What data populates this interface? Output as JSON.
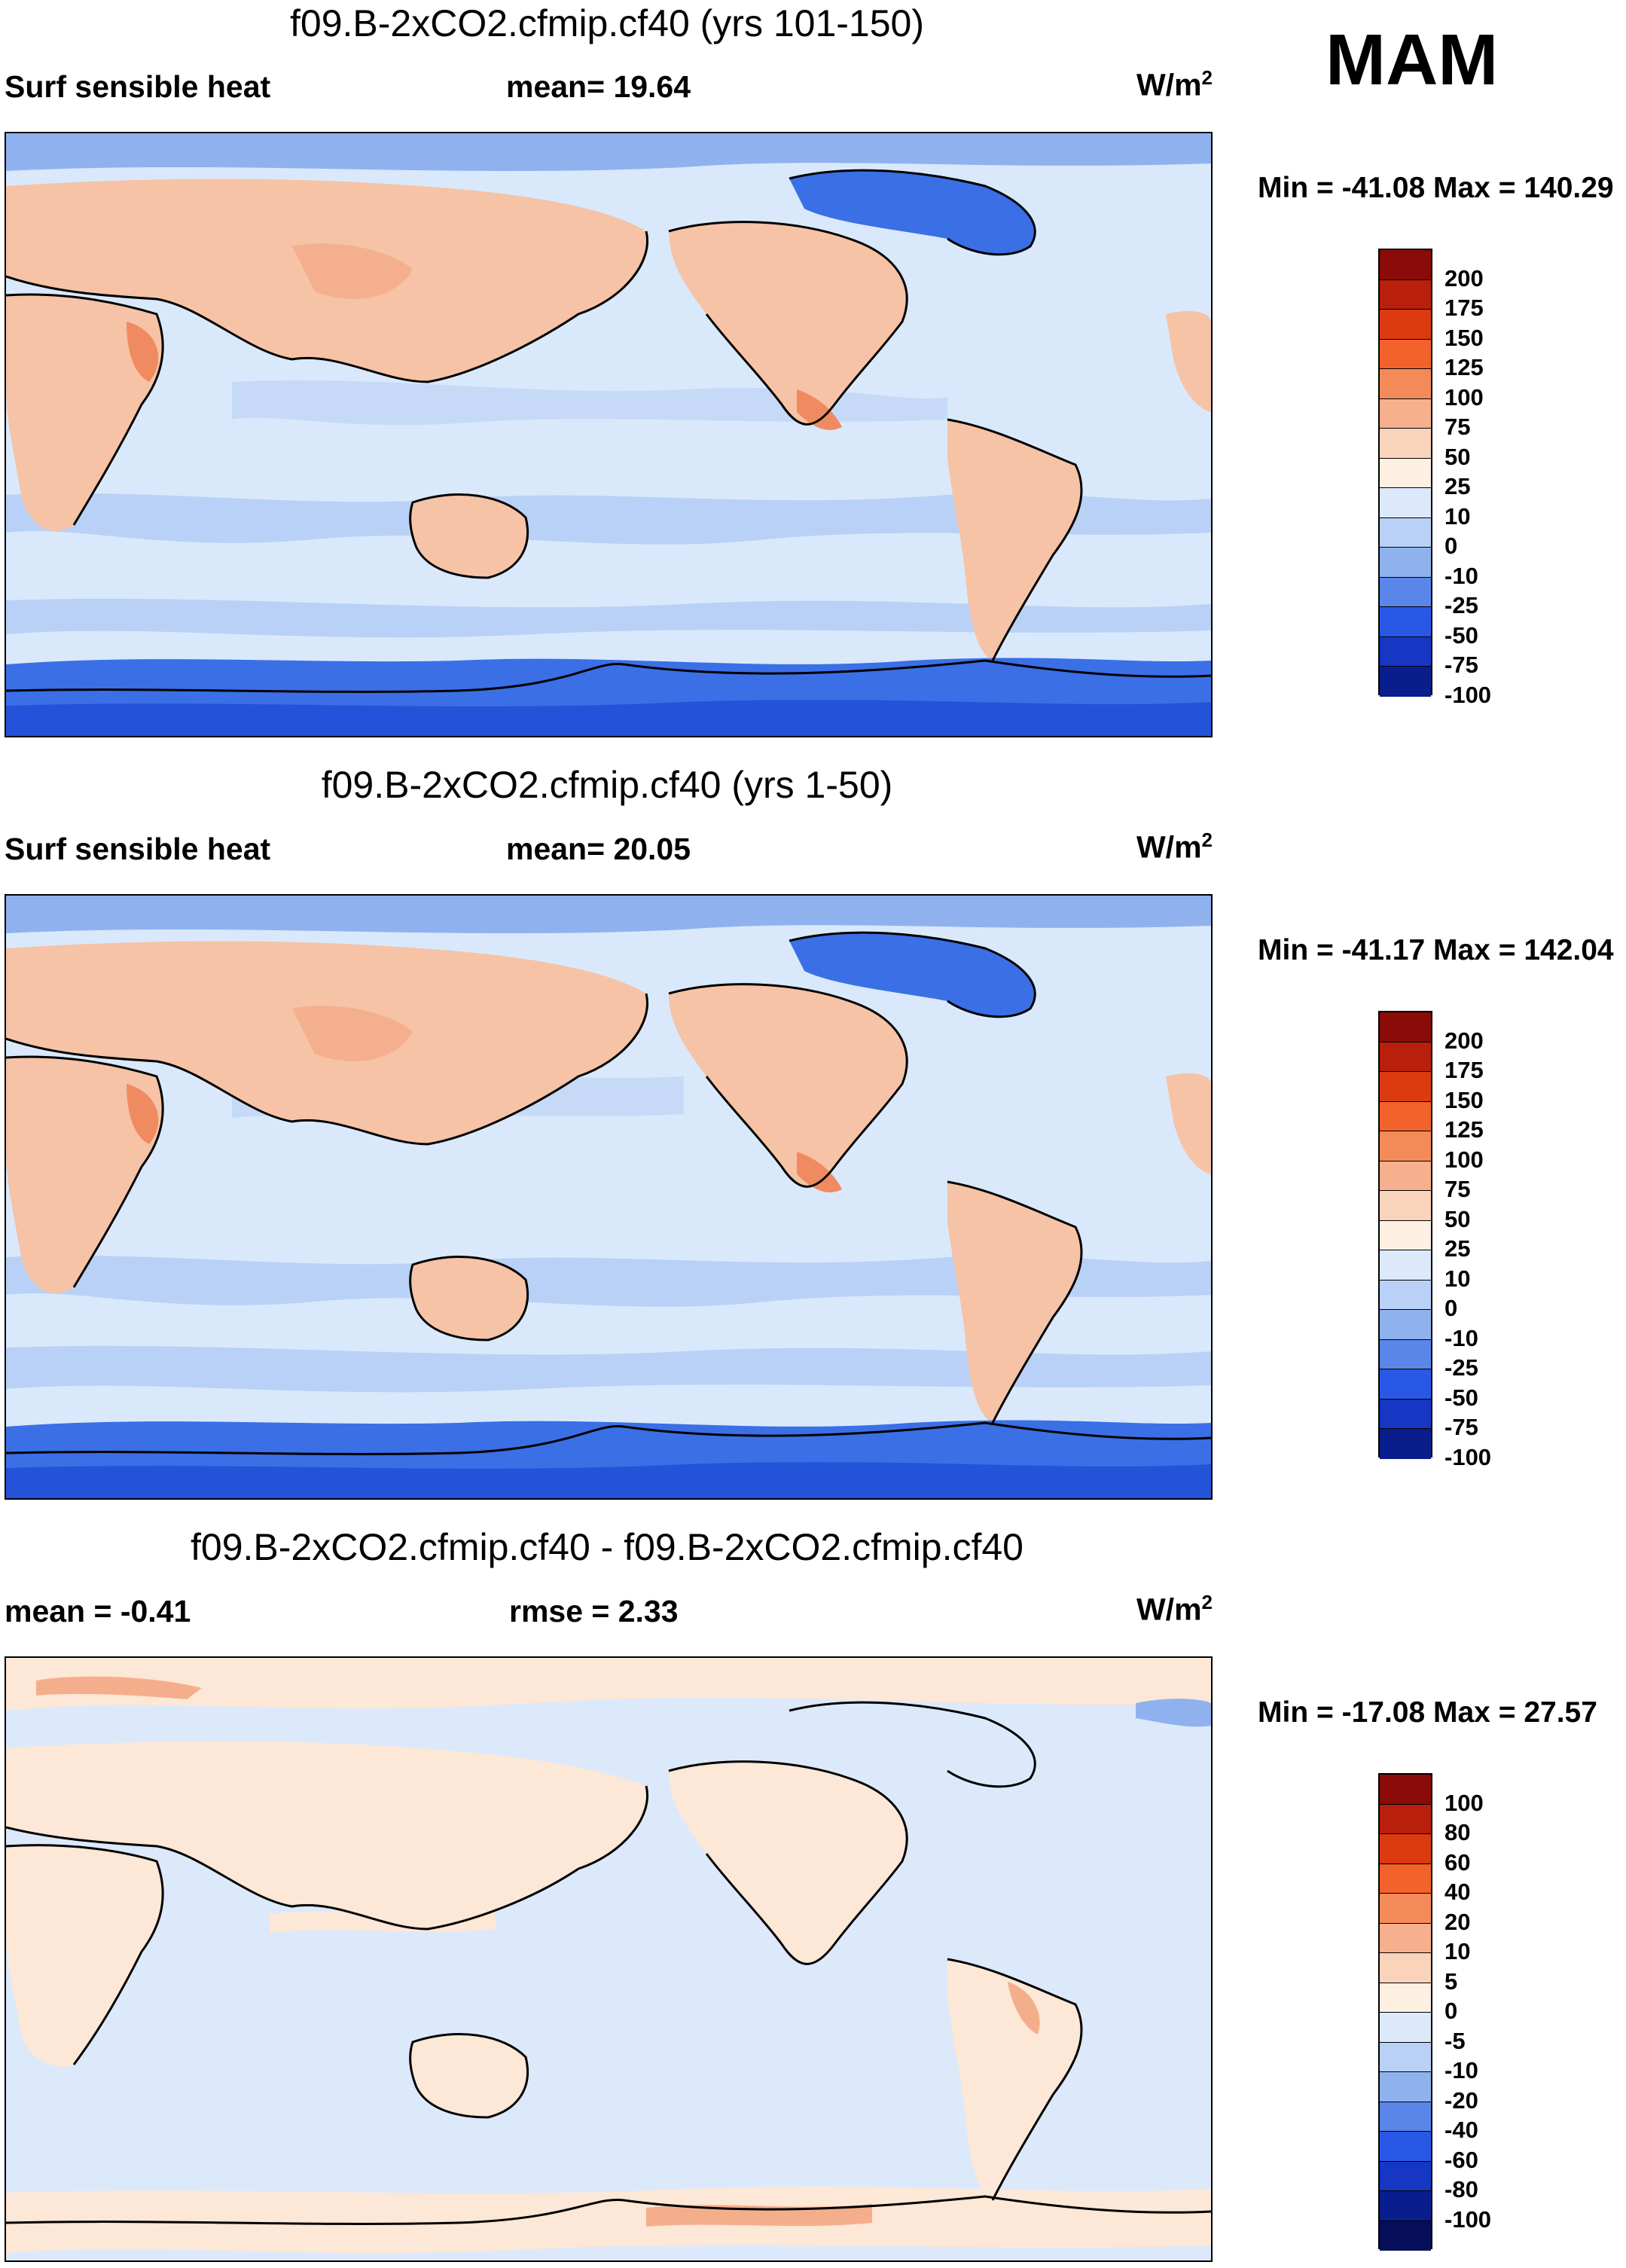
{
  "season": "MAM",
  "panels": [
    {
      "title": "f09.B-2xCO2.cfmip.cf40 (yrs 101-150)",
      "label_left": "Surf sensible heat",
      "label_mid": "mean=  19.64",
      "units": "W/m",
      "units_exp": "2",
      "minmax": "Min = -41.08 Max = 140.29",
      "levels": [
        "200",
        "175",
        "150",
        "125",
        "100",
        "75",
        "50",
        "25",
        "10",
        "0",
        "-10",
        "-25",
        "-50",
        "-75",
        "-100"
      ],
      "colors": [
        "#8b0b08",
        "#b8200c",
        "#dc3a10",
        "#f2622a",
        "#f48a58",
        "#f6b08e",
        "#fad3bb",
        "#fdf0e2",
        "#dce9fa",
        "#b9d1f6",
        "#8fb2ef",
        "#5a86ea",
        "#2958e6",
        "#1537c4",
        "#0a1d8c"
      ]
    },
    {
      "title": "f09.B-2xCO2.cfmip.cf40 (yrs 1-50)",
      "label_left": "Surf sensible heat",
      "label_mid": "mean=  20.05",
      "units": "W/m",
      "units_exp": "2",
      "minmax": "Min = -41.17 Max = 142.04",
      "levels": [
        "200",
        "175",
        "150",
        "125",
        "100",
        "75",
        "50",
        "25",
        "10",
        "0",
        "-10",
        "-25",
        "-50",
        "-75",
        "-100"
      ],
      "colors": [
        "#8b0b08",
        "#b8200c",
        "#dc3a10",
        "#f2622a",
        "#f48a58",
        "#f6b08e",
        "#fad3bb",
        "#fdf0e2",
        "#dce9fa",
        "#b9d1f6",
        "#8fb2ef",
        "#5a86ea",
        "#2958e6",
        "#1537c4",
        "#0a1d8c"
      ]
    },
    {
      "title": "f09.B-2xCO2.cfmip.cf40 - f09.B-2xCO2.cfmip.cf40",
      "label_left": "mean =  -0.41",
      "label_mid": "rmse =    2.33",
      "units": "W/m",
      "units_exp": "2",
      "minmax": "Min = -17.08 Max =  27.57",
      "levels": [
        "100",
        "80",
        "60",
        "40",
        "20",
        "10",
        "5",
        "0",
        "-5",
        "-10",
        "-20",
        "-40",
        "-60",
        "-80",
        "-100"
      ],
      "colors": [
        "#8b0b08",
        "#b8200c",
        "#dc3a10",
        "#f2622a",
        "#f48a58",
        "#f6b08e",
        "#fad3bb",
        "#fdf0e2",
        "#dce9fa",
        "#b9d1f6",
        "#8fb2ef",
        "#5a86ea",
        "#2958e6",
        "#1537c4",
        "#0a1d8c",
        "#070f5a"
      ]
    }
  ],
  "map_colors": {
    "ocean": "#d9e9fb",
    "ocean_band": "#b9d1f6",
    "land_warm": "#f6c3a6",
    "land_hot": "#f08a60",
    "ice": "#3a6fe6",
    "ice_deep": "#2452d8",
    "diff_ocean": "#dce9fa",
    "diff_land": "#fde7d6",
    "diff_hot": "#f5ae8c"
  }
}
